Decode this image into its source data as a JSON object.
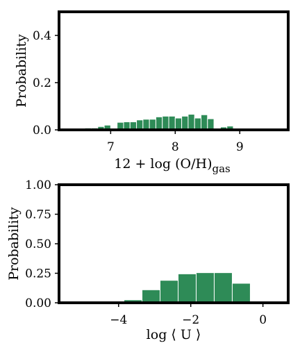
{
  "bar_color": "#2e8b57",
  "chart_data": [
    {
      "type": "bar",
      "xlabel_main": "12 + log (O/H)",
      "xlabel_sub": "gas",
      "ylabel": "Probability",
      "xlim": [
        6.2,
        9.75
      ],
      "ylim": [
        0.0,
        0.5
      ],
      "x_ticks": [
        7,
        8,
        9
      ],
      "x_tick_labels": [
        "7",
        "8",
        "9"
      ],
      "y_ticks": [
        0.0,
        0.2,
        0.4
      ],
      "y_tick_labels": [
        "0.0",
        "0.2",
        "0.4"
      ],
      "bin_width": 0.1,
      "bins": [
        {
          "x0": 6.5,
          "value": 0.004
        },
        {
          "x0": 6.6,
          "value": 0.008
        },
        {
          "x0": 6.7,
          "value": 0.008
        },
        {
          "x0": 6.8,
          "value": 0.014
        },
        {
          "x0": 6.9,
          "value": 0.02
        },
        {
          "x0": 7.0,
          "value": 0.004
        },
        {
          "x0": 7.1,
          "value": 0.032
        },
        {
          "x0": 7.2,
          "value": 0.034
        },
        {
          "x0": 7.3,
          "value": 0.034
        },
        {
          "x0": 7.4,
          "value": 0.042
        },
        {
          "x0": 7.5,
          "value": 0.045
        },
        {
          "x0": 7.6,
          "value": 0.045
        },
        {
          "x0": 7.7,
          "value": 0.055
        },
        {
          "x0": 7.8,
          "value": 0.058
        },
        {
          "x0": 7.9,
          "value": 0.058
        },
        {
          "x0": 8.0,
          "value": 0.05
        },
        {
          "x0": 8.1,
          "value": 0.058
        },
        {
          "x0": 8.2,
          "value": 0.066
        },
        {
          "x0": 8.3,
          "value": 0.05
        },
        {
          "x0": 8.4,
          "value": 0.064
        },
        {
          "x0": 8.5,
          "value": 0.047
        },
        {
          "x0": 8.6,
          "value": 0.004
        },
        {
          "x0": 8.7,
          "value": 0.012
        },
        {
          "x0": 8.8,
          "value": 0.016
        },
        {
          "x0": 8.9,
          "value": 0.004
        }
      ]
    },
    {
      "type": "bar",
      "xlabel_main": "log ⟨ U ⟩",
      "xlabel_sub": "",
      "ylabel": "Probability",
      "xlim": [
        -5.65,
        0.7
      ],
      "ylim": [
        0.0,
        1.0
      ],
      "x_ticks": [
        -4,
        -2,
        0
      ],
      "x_tick_labels": [
        "−4",
        "−2",
        "0"
      ],
      "y_ticks": [
        0.0,
        0.25,
        0.5,
        0.75,
        1.0
      ],
      "y_tick_labels": [
        "0.00",
        "0.25",
        "0.50",
        "0.75",
        "1.00"
      ],
      "bin_width": 0.5,
      "bins": [
        {
          "x0": -3.85,
          "value": 0.025
        },
        {
          "x0": -3.35,
          "value": 0.11
        },
        {
          "x0": -2.85,
          "value": 0.19
        },
        {
          "x0": -2.35,
          "value": 0.245
        },
        {
          "x0": -1.85,
          "value": 0.255
        },
        {
          "x0": -1.35,
          "value": 0.255
        },
        {
          "x0": -0.85,
          "value": 0.165
        }
      ]
    }
  ]
}
